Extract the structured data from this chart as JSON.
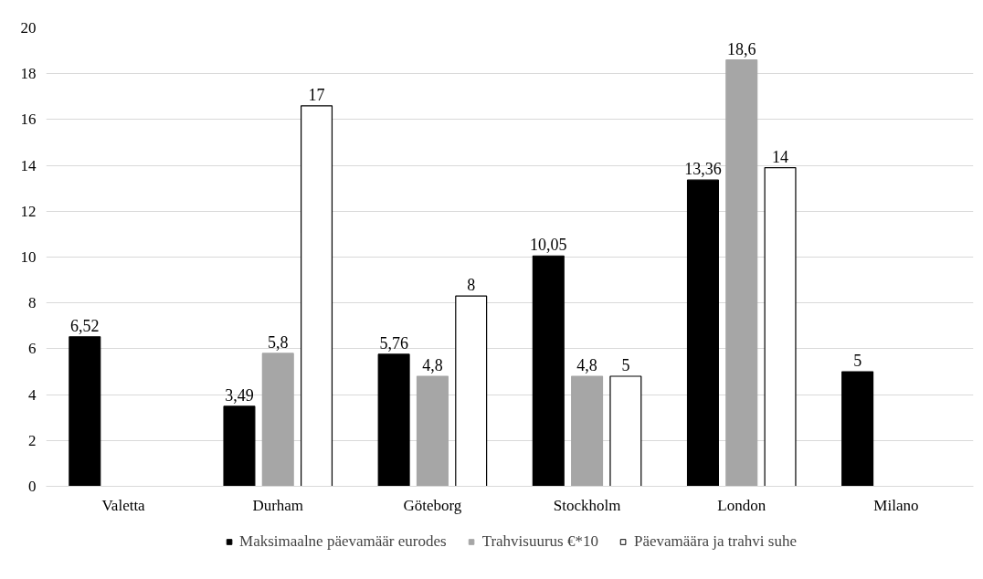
{
  "chart_data": {
    "type": "bar",
    "categories": [
      "Valetta",
      "Durham",
      "Göteborg",
      "Stockholm",
      "London",
      "Milano"
    ],
    "series": [
      {
        "name": "Maksimaalne päevamäär eurodes",
        "color": "#000000",
        "values": [
          6.52,
          3.49,
          5.76,
          10.05,
          13.36,
          5
        ],
        "value_labels": [
          "6,52",
          "3,49",
          "5,76",
          "10,05",
          "13,36",
          "5"
        ]
      },
      {
        "name": "Trahvisuurus €*10",
        "color": "#a6a6a6",
        "values": [
          null,
          5.8,
          4.8,
          4.8,
          18.6,
          null
        ],
        "value_labels": [
          null,
          "5,8",
          "4,8",
          "4,8",
          "18,6",
          null
        ]
      },
      {
        "name": "Päevamäära ja trahvi suhe",
        "color": "#ffffff",
        "values": [
          null,
          16.6,
          8.3,
          4.8,
          13.9,
          null
        ],
        "value_labels": [
          null,
          "17",
          "8",
          "5",
          "14",
          null
        ]
      }
    ],
    "ylim": [
      0,
      20
    ],
    "yticks": [
      0,
      2,
      4,
      6,
      8,
      10,
      12,
      14,
      16,
      18,
      20
    ],
    "grid": "y",
    "legend": "bottom"
  }
}
